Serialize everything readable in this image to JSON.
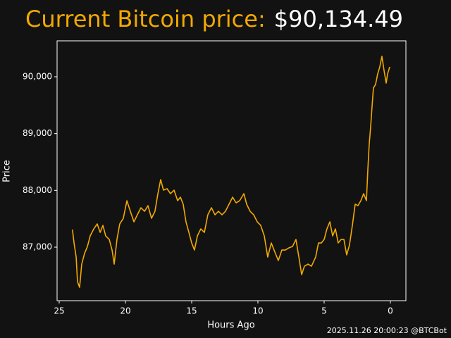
{
  "chart_data": {
    "type": "line",
    "title": "Current Bitcoin price:",
    "subtitle": "$90,134.49",
    "footer": "2025.11.26 20:00:23 @BTCBot",
    "xlabel": "Hours Ago",
    "ylabel": "Price",
    "xlim": [
      25.16,
      -1.17
    ],
    "xticks": [
      25,
      20,
      15,
      10,
      5,
      0
    ],
    "ylim": [
      86058,
      90632
    ],
    "yticks": [
      {
        "value": 87000,
        "label": "87,000"
      },
      {
        "value": 88000,
        "label": "88,000"
      },
      {
        "value": 89000,
        "label": "89,000"
      },
      {
        "value": 90000,
        "label": "90,000"
      }
    ],
    "series": [
      {
        "color": "#f2a900",
        "x": [
          24.0,
          23.88,
          23.72,
          23.62,
          23.46,
          23.3,
          23.09,
          22.87,
          22.66,
          22.39,
          22.13,
          21.91,
          21.7,
          21.49,
          21.22,
          21.01,
          20.85,
          20.64,
          20.43,
          20.16,
          19.89,
          19.63,
          19.36,
          19.1,
          18.83,
          18.56,
          18.3,
          18.03,
          17.77,
          17.55,
          17.34,
          17.13,
          16.86,
          16.6,
          16.33,
          16.06,
          15.85,
          15.64,
          15.43,
          15.21,
          15.0,
          14.79,
          14.57,
          14.31,
          14.04,
          13.78,
          13.51,
          13.24,
          12.98,
          12.71,
          12.45,
          12.18,
          11.91,
          11.65,
          11.38,
          11.06,
          10.85,
          10.59,
          10.32,
          10.05,
          9.79,
          9.52,
          9.26,
          8.99,
          8.72,
          8.46,
          8.19,
          7.93,
          7.66,
          7.39,
          7.13,
          6.91,
          6.7,
          6.49,
          6.22,
          5.96,
          5.64,
          5.43,
          5.21,
          5.0,
          4.79,
          4.57,
          4.36,
          4.15,
          3.94,
          3.72,
          3.51,
          3.3,
          3.09,
          2.87,
          2.66,
          2.45,
          2.23,
          2.02,
          1.81,
          1.7,
          1.6,
          1.49,
          1.38,
          1.28,
          1.12,
          0.96,
          0.8,
          0.64,
          0.48,
          0.32,
          0.21,
          0.05
        ],
        "values": [
          87310,
          87074,
          86826,
          86393,
          86293,
          86702,
          86888,
          87012,
          87198,
          87322,
          87409,
          87260,
          87384,
          87198,
          87136,
          86950,
          86702,
          87136,
          87409,
          87508,
          87818,
          87632,
          87446,
          87570,
          87694,
          87632,
          87731,
          87508,
          87632,
          87942,
          88190,
          88004,
          88029,
          87942,
          88004,
          87818,
          87880,
          87756,
          87446,
          87260,
          87074,
          86950,
          87198,
          87322,
          87260,
          87570,
          87694,
          87570,
          87632,
          87570,
          87632,
          87756,
          87880,
          87781,
          87818,
          87942,
          87756,
          87632,
          87570,
          87446,
          87384,
          87198,
          86826,
          87074,
          86913,
          86764,
          86950,
          86950,
          86988,
          87012,
          87136,
          86826,
          86517,
          86665,
          86702,
          86665,
          86826,
          87074,
          87074,
          87136,
          87322,
          87446,
          87198,
          87322,
          87074,
          87136,
          87136,
          86864,
          87037,
          87384,
          87756,
          87731,
          87818,
          87942,
          87818,
          88376,
          88810,
          89120,
          89492,
          89802,
          89864,
          90050,
          90174,
          90360,
          90112,
          89889,
          90050,
          90174
        ]
      }
    ]
  }
}
